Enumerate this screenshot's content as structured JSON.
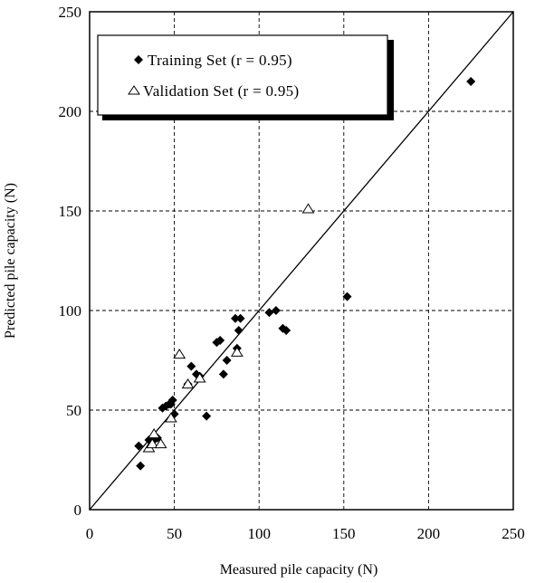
{
  "chart_data": {
    "type": "scatter",
    "xlabel": "Measured pile capacity  (N)",
    "ylabel": "Predicted pile capacity  (N)",
    "xlim": [
      0,
      250
    ],
    "ylim": [
      0,
      250
    ],
    "x_ticks": [
      0,
      50,
      100,
      150,
      200,
      250
    ],
    "y_ticks": [
      0,
      50,
      100,
      150,
      200,
      250
    ],
    "grid": true,
    "grid_style": "dashed",
    "legend_position": "top-left",
    "reference_line": "y = x",
    "series": [
      {
        "name": "Training Set (r = 0.95)",
        "marker": "filled-diamond",
        "color": "#000000",
        "points": [
          [
            29,
            32
          ],
          [
            30,
            22
          ],
          [
            35,
            35
          ],
          [
            38,
            35
          ],
          [
            40,
            36
          ],
          [
            43,
            51
          ],
          [
            45,
            52
          ],
          [
            47,
            53
          ],
          [
            48,
            53
          ],
          [
            49,
            55
          ],
          [
            50,
            48
          ],
          [
            58,
            63
          ],
          [
            60,
            72
          ],
          [
            63,
            68
          ],
          [
            65,
            67
          ],
          [
            69,
            47
          ],
          [
            75,
            84
          ],
          [
            77,
            85
          ],
          [
            79,
            68
          ],
          [
            81,
            75
          ],
          [
            86,
            96
          ],
          [
            87,
            81
          ],
          [
            88,
            90
          ],
          [
            89,
            96
          ],
          [
            106,
            99
          ],
          [
            110,
            100
          ],
          [
            114,
            91
          ],
          [
            116,
            90
          ],
          [
            152,
            107
          ],
          [
            225,
            215
          ]
        ]
      },
      {
        "name": "Validation Set (r = 0.95)",
        "marker": "open-triangle",
        "color": "#000000",
        "points": [
          [
            35,
            31
          ],
          [
            37,
            33
          ],
          [
            38,
            38
          ],
          [
            42,
            33
          ],
          [
            48,
            46
          ],
          [
            53,
            78
          ],
          [
            58,
            63
          ],
          [
            65,
            66
          ],
          [
            87,
            79
          ],
          [
            129,
            151
          ]
        ]
      }
    ]
  }
}
